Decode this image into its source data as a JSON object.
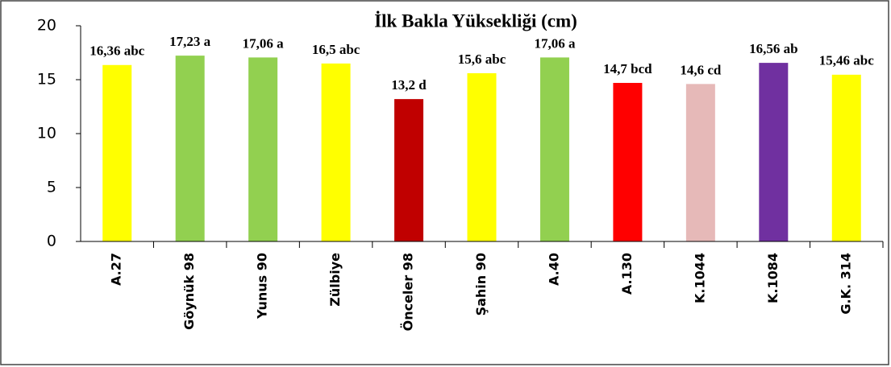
{
  "chart_data": {
    "type": "bar",
    "title": "İlk Bakla Yüksekliği (cm)",
    "categories": [
      "A.27",
      "Göynük 98",
      "Yunus 90",
      "Zülbiye",
      "Önceler 98",
      "Şahin 90",
      "A.40",
      "A.130",
      "K.1044",
      "K.1084",
      "G.K. 314"
    ],
    "values": [
      16.36,
      17.23,
      17.06,
      16.5,
      13.2,
      15.6,
      17.06,
      14.7,
      14.6,
      16.56,
      15.46
    ],
    "value_labels": [
      "16,36 abc",
      "17,23 a",
      "17,06 a",
      "16,5 abc",
      "13,2 d",
      "15,6 abc",
      "17,06 a",
      "14,7 bcd",
      "14,6 cd",
      "16,56 ab",
      "15,46 abc"
    ],
    "colors": [
      "#ffff00",
      "#92d050",
      "#92d050",
      "#ffff00",
      "#c00000",
      "#ffff00",
      "#92d050",
      "#ff0000",
      "#e6b9b8",
      "#7030a0",
      "#ffff00"
    ],
    "ylim": [
      0,
      20
    ],
    "yticks": [
      0,
      5,
      10,
      15,
      20
    ],
    "grid": false
  }
}
